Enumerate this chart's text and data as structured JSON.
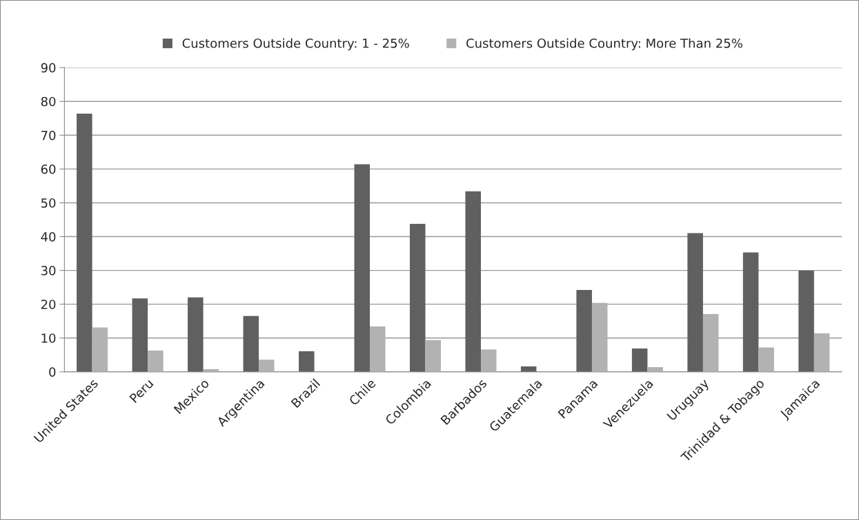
{
  "chart_data": {
    "type": "bar",
    "categories": [
      "United States",
      "Peru",
      "Mexico",
      "Argentina",
      "Brazil",
      "Chile",
      "Colombia",
      "Barbados",
      "Guatemala",
      "Panama",
      "Venezuela",
      "Uruguay",
      "Trinidad & Tobago",
      "Jamaica"
    ],
    "series": [
      {
        "name": "Customers Outside Country: 1 - 25%",
        "color": "#606060",
        "values": [
          76.4,
          21.7,
          22.0,
          16.5,
          6.1,
          61.4,
          43.8,
          53.4,
          1.6,
          24.2,
          6.9,
          41.0,
          35.3,
          29.9
        ]
      },
      {
        "name": "Customers Outside Country: More Than 25%",
        "color": "#b2b2b2",
        "values": [
          13.1,
          6.3,
          0.8,
          3.6,
          null,
          13.4,
          9.4,
          6.6,
          null,
          20.4,
          1.4,
          17.1,
          7.2,
          11.4
        ]
      }
    ],
    "ylim": [
      0,
      90
    ],
    "yticks": [
      0,
      10,
      20,
      30,
      40,
      50,
      60,
      70,
      80,
      90
    ],
    "grid": "y",
    "legend": "top"
  }
}
